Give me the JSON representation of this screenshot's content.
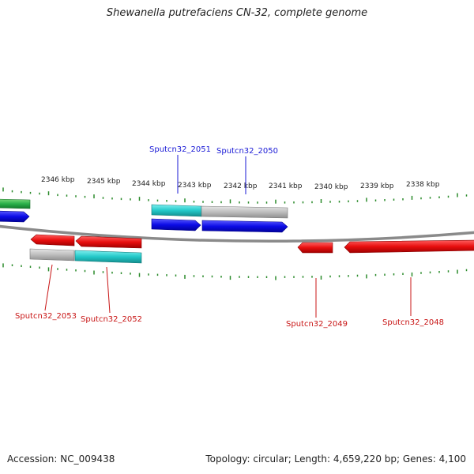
{
  "title": "Shewanella putrefaciens CN-32, complete genome",
  "footer": {
    "accession": "Accession: NC_009438",
    "summary": "Topology: circular; Length: 4,659,220 bp; Genes: 4,100"
  },
  "scale": {
    "labels": [
      "2346 kbp",
      "2345 kbp",
      "2344 kbp",
      "2343 kbp",
      "2342 kbp",
      "2341 kbp",
      "2340 kbp",
      "2339 kbp",
      "2338 kbp"
    ]
  },
  "genes": {
    "top": [
      {
        "name": "Sputcn32_2051",
        "color": "#1a1ad6"
      },
      {
        "name": "Sputcn32_2050",
        "color": "#1a1ad6"
      }
    ],
    "bottom": [
      {
        "name": "Sputcn32_2053",
        "color": "#c81414"
      },
      {
        "name": "Sputcn32_2052",
        "color": "#c81414"
      },
      {
        "name": "Sputcn32_2049",
        "color": "#c81414"
      },
      {
        "name": "Sputcn32_2048",
        "color": "#c81414"
      }
    ]
  },
  "colors": {
    "forward_cds": "#1010e0",
    "reverse_cds": "#e01010",
    "rna": "#2ab04a",
    "feature_cyan": "#22c8c8",
    "feature_gray": "#b8b8b8",
    "ticks": "#2a8a2a",
    "backbone": "#888888"
  }
}
